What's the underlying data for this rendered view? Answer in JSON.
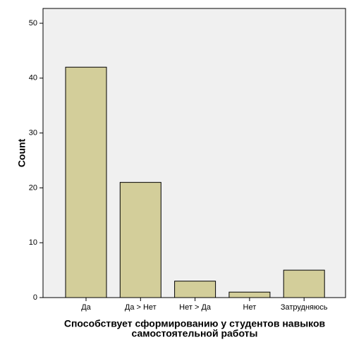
{
  "chart_data": {
    "type": "bar",
    "categories": [
      "Да",
      "Да > Нет",
      "Нет > Да",
      "Нет",
      "Затрудняюсь"
    ],
    "values": [
      42,
      21,
      3,
      1,
      5
    ],
    "color": "#d3ce9a",
    "ylim": [
      0,
      52.7
    ],
    "yticks": [
      0,
      10,
      20,
      30,
      40,
      50
    ],
    "y_label": "Count",
    "x_label": [
      "Способствует сформированию у студентов навыков",
      "самостоятельной работы"
    ]
  }
}
